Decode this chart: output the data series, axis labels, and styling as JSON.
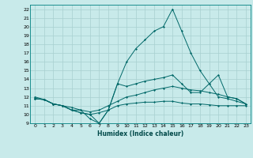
{
  "title": "",
  "xlabel": "Humidex (Indice chaleur)",
  "ylabel": "",
  "bg_color": "#c8eaea",
  "grid_color": "#a8d0d0",
  "line_color": "#006868",
  "xlim": [
    -0.5,
    23.5
  ],
  "ylim": [
    9,
    22.5
  ],
  "yticks": [
    9,
    10,
    11,
    12,
    13,
    14,
    15,
    16,
    17,
    18,
    19,
    20,
    21,
    22
  ],
  "xticks": [
    0,
    1,
    2,
    3,
    4,
    5,
    6,
    7,
    8,
    9,
    10,
    11,
    12,
    13,
    14,
    15,
    16,
    17,
    18,
    19,
    20,
    21,
    22,
    23
  ],
  "series": [
    [
      11.8,
      11.7,
      11.2,
      11.0,
      10.5,
      10.2,
      10.0,
      10.2,
      10.5,
      11.0,
      11.2,
      11.3,
      11.4,
      11.4,
      11.5,
      11.5,
      11.3,
      11.2,
      11.2,
      11.1,
      11.0,
      11.0,
      11.0,
      11.0
    ],
    [
      11.8,
      11.7,
      11.2,
      11.0,
      10.5,
      10.5,
      10.3,
      10.5,
      11.0,
      11.5,
      12.0,
      12.2,
      12.5,
      12.8,
      13.0,
      13.2,
      13.0,
      12.8,
      12.7,
      12.5,
      12.3,
      12.0,
      11.8,
      11.2
    ],
    [
      12.0,
      11.7,
      11.2,
      11.0,
      10.8,
      10.5,
      9.5,
      9.0,
      10.5,
      13.5,
      13.2,
      13.5,
      13.8,
      14.0,
      14.2,
      14.5,
      13.5,
      12.5,
      12.5,
      13.5,
      14.5,
      12.0,
      11.8,
      11.2
    ],
    [
      11.8,
      11.7,
      11.2,
      11.0,
      10.5,
      10.2,
      10.0,
      9.0,
      10.5,
      13.5,
      16.0,
      17.5,
      18.5,
      19.5,
      20.0,
      22.0,
      19.5,
      17.0,
      15.0,
      13.5,
      12.0,
      11.8,
      11.5,
      11.2
    ]
  ]
}
